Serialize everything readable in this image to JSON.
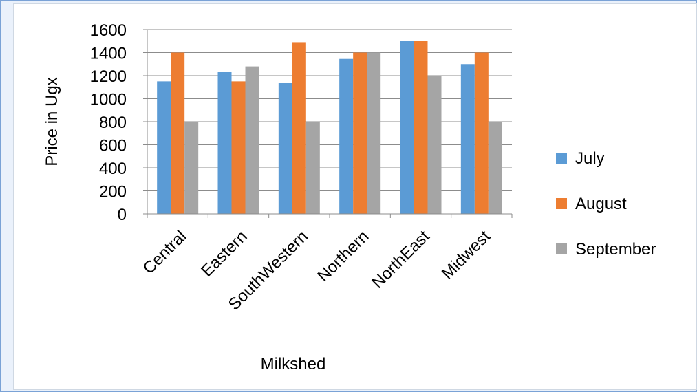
{
  "chart_data": {
    "type": "bar",
    "title": "",
    "xlabel": "Milkshed",
    "ylabel": "Price in Ugx",
    "ylim": [
      0,
      1600
    ],
    "yticks": [
      0,
      200,
      400,
      600,
      800,
      1000,
      1200,
      1400,
      1600
    ],
    "grid": true,
    "legend_position": "right",
    "categories": [
      "Central",
      "Eastern",
      "SouthWestern",
      "Northern",
      "NorthEast",
      "Midwest"
    ],
    "series": [
      {
        "name": "July",
        "color": "#5b9bd5",
        "values": [
          1150,
          1235,
          1140,
          1345,
          1500,
          1300
        ]
      },
      {
        "name": "August",
        "color": "#ed7d31",
        "values": [
          1400,
          1150,
          1490,
          1400,
          1500,
          1400
        ]
      },
      {
        "name": "September",
        "color": "#a5a5a5",
        "values": [
          800,
          1280,
          800,
          1400,
          1200,
          800
        ]
      }
    ]
  }
}
